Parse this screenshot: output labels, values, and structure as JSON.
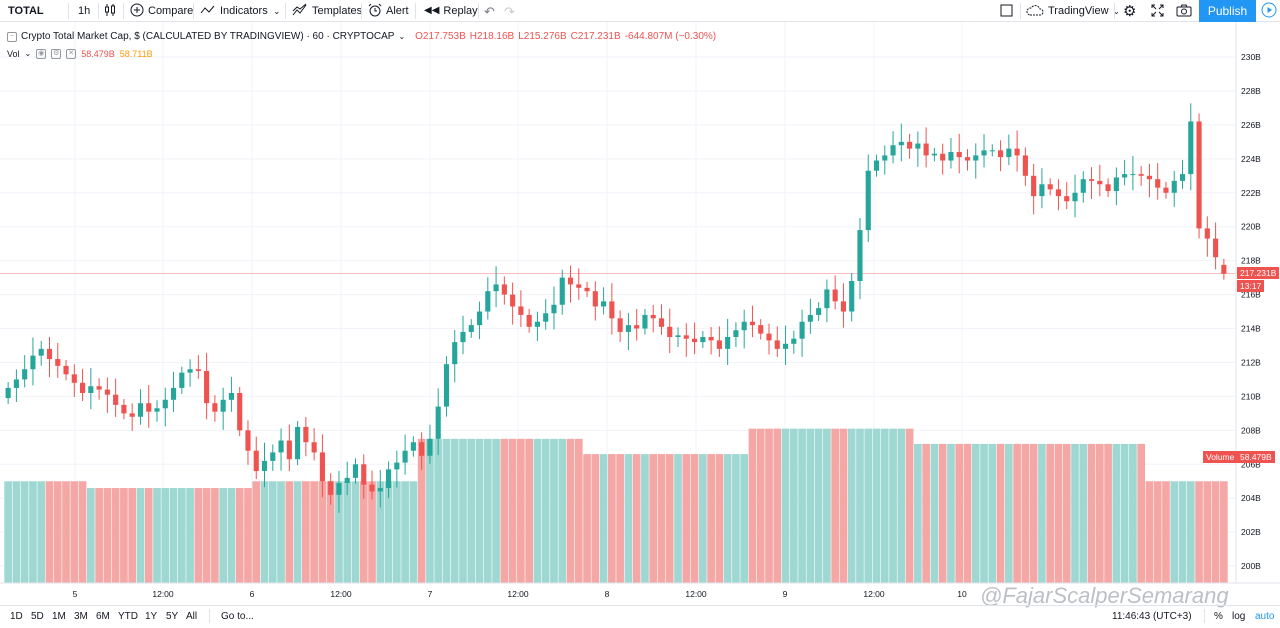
{
  "toolbar": {
    "symbol": "TOTAL",
    "interval": "1h",
    "compare": "Compare",
    "indicators": "Indicators",
    "templates": "Templates",
    "alert": "Alert",
    "replay": "Replay",
    "layout_name": "TradingView",
    "publish": "Publish"
  },
  "legend": {
    "title": "Crypto Total Market Cap, $ (CALCULATED BY TRADINGVIEW) · 60 · CRYPTOCAP",
    "open": "O217.753B",
    "high": "H218.16B",
    "low": "L215.276B",
    "close": "C217.231B",
    "change": "-644.807M (−0.30%)",
    "vol_label": "Vol",
    "vol_value1": "58.479B",
    "vol_value2": "58.711B"
  },
  "price_labels": {
    "last_price": "217.231B",
    "countdown": "13:17",
    "volume_tag": "Volume",
    "volume_value": "58.479B"
  },
  "bottom": {
    "ranges": [
      "1D",
      "5D",
      "1M",
      "3M",
      "6M",
      "YTD",
      "1Y",
      "5Y",
      "All"
    ],
    "goto": "Go to...",
    "clock": "11:46:43 (UTC+3)",
    "percent": "%",
    "log": "log",
    "auto": "auto"
  },
  "watermark": "@FajarScalperSemarang",
  "colors": {
    "up": "#26a69a",
    "down": "#ef5350",
    "accent": "#2196f3",
    "vol_up": "#9fd8d2",
    "vol_down": "#f4a7a5"
  },
  "chart_data": {
    "type": "candlestick",
    "unit": "B",
    "y_ticks": [
      "230B",
      "228B",
      "226B",
      "224B",
      "222B",
      "220B",
      "218B",
      "216B",
      "214B",
      "212B",
      "210B",
      "208B",
      "206B",
      "204B",
      "202B",
      "200B"
    ],
    "ylim": [
      199,
      231
    ],
    "x_ticks": [
      "5",
      "12:00",
      "6",
      "12:00",
      "7",
      "12:00",
      "8",
      "12:00",
      "9",
      "12:00",
      "10"
    ],
    "last_price": 217.231,
    "close_path": [
      210.5,
      211.0,
      211.6,
      212.4,
      212.8,
      212.2,
      211.8,
      211.3,
      210.8,
      210.2,
      210.6,
      210.4,
      210.1,
      209.5,
      209.0,
      208.8,
      209.6,
      209.1,
      209.3,
      209.8,
      210.5,
      211.4,
      211.6,
      211.5,
      209.6,
      209.1,
      209.8,
      210.2,
      208.0,
      206.8,
      205.6,
      206.2,
      206.7,
      207.4,
      206.3,
      208.2,
      207.3,
      206.7,
      205.0,
      204.2,
      204.9,
      205.2,
      206.0,
      204.8,
      204.4,
      204.6,
      205.7,
      206.1,
      206.8,
      207.3,
      206.5,
      207.5,
      209.4,
      211.9,
      213.2,
      213.8,
      214.2,
      215.0,
      216.2,
      216.6,
      216.0,
      215.3,
      214.8,
      214.1,
      214.4,
      214.9,
      215.4,
      217.0,
      216.6,
      216.4,
      216.2,
      215.3,
      215.6,
      214.6,
      213.8,
      214.2,
      214.0,
      214.8,
      214.6,
      214.1,
      213.5,
      213.6,
      213.4,
      213.2,
      213.5,
      213.3,
      212.8,
      213.5,
      213.9,
      214.4,
      214.2,
      213.7,
      213.3,
      212.8,
      213.1,
      213.4,
      214.4,
      214.8,
      215.2,
      216.3,
      215.6,
      215.0,
      216.8,
      219.8,
      223.3,
      223.9,
      224.2,
      224.8,
      225.0,
      224.6,
      224.9,
      224.2,
      224.3,
      223.9,
      224.4,
      224.1,
      223.9,
      224.2,
      224.5,
      224.5,
      224.1,
      224.6,
      224.2,
      223.0,
      221.8,
      222.5,
      222.2,
      221.8,
      221.5,
      222.0,
      222.8,
      222.7,
      222.5,
      222.1,
      222.9,
      223.1,
      223.1,
      223.0,
      222.8,
      222.3,
      222.0,
      222.7,
      223.1,
      226.2,
      219.9,
      219.3,
      218.2,
      217.231
    ],
    "open_path": [
      209.9,
      210.5,
      211.0,
      211.6,
      212.4,
      212.8,
      212.2,
      211.8,
      211.3,
      210.8,
      210.2,
      210.6,
      210.4,
      210.1,
      209.5,
      209.0,
      208.8,
      209.6,
      209.1,
      209.3,
      209.8,
      210.5,
      211.4,
      211.6,
      211.5,
      209.6,
      209.1,
      209.8,
      210.2,
      208.0,
      206.8,
      205.6,
      206.2,
      206.7,
      207.4,
      206.3,
      208.2,
      207.3,
      206.7,
      205.0,
      204.2,
      204.9,
      205.2,
      206.0,
      204.8,
      204.4,
      204.6,
      205.7,
      206.1,
      206.8,
      207.3,
      206.5,
      207.5,
      209.4,
      211.9,
      213.2,
      213.8,
      214.2,
      215.0,
      216.2,
      216.6,
      216.0,
      215.3,
      214.8,
      214.1,
      214.4,
      214.9,
      215.4,
      217.0,
      216.6,
      216.4,
      216.2,
      215.3,
      215.6,
      214.6,
      213.8,
      214.2,
      214.0,
      214.8,
      214.6,
      214.1,
      213.5,
      213.6,
      213.4,
      213.2,
      213.5,
      213.3,
      212.8,
      213.5,
      213.9,
      214.4,
      214.2,
      213.7,
      213.3,
      212.8,
      213.1,
      213.4,
      214.4,
      214.8,
      215.2,
      216.3,
      215.6,
      215.0,
      216.8,
      219.8,
      223.3,
      223.9,
      224.2,
      224.8,
      225.0,
      224.6,
      224.9,
      224.2,
      224.3,
      223.9,
      224.4,
      224.1,
      223.9,
      224.2,
      224.5,
      224.5,
      224.1,
      224.6,
      224.2,
      223.0,
      221.8,
      222.5,
      222.2,
      221.8,
      221.5,
      222.0,
      222.8,
      222.7,
      222.5,
      222.1,
      222.9,
      223.1,
      223.1,
      223.0,
      222.8,
      222.3,
      222.0,
      222.7,
      223.1,
      226.2,
      219.9,
      219.3,
      217.753
    ],
    "volume_steps": [
      {
        "from": 0,
        "to": 10,
        "value": 205.0
      },
      {
        "from": 10,
        "to": 30,
        "value": 204.6
      },
      {
        "from": 30,
        "to": 50,
        "value": 205.0
      },
      {
        "from": 50,
        "to": 70,
        "value": 207.5
      },
      {
        "from": 70,
        "to": 90,
        "value": 206.6
      },
      {
        "from": 90,
        "to": 110,
        "value": 208.1
      },
      {
        "from": 110,
        "to": 138,
        "value": 207.2
      }
    ],
    "volume_last": 58.479
  }
}
